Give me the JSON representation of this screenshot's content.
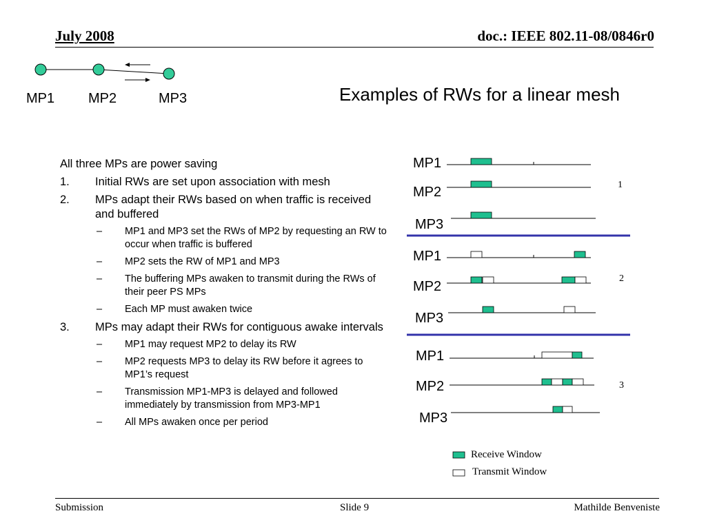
{
  "header": {
    "date": "July 2008",
    "doc": "doc.: IEEE 802.11-08/0846r0"
  },
  "footer": {
    "left": "Submission",
    "center": "Slide 9",
    "right": "Mathilde Benveniste"
  },
  "title": "Examples of RWs for a linear mesh",
  "topology": {
    "nodes": [
      "MP1",
      "MP2",
      "MP3"
    ],
    "node_color": "#33cc99"
  },
  "body": {
    "intro": "All three MPs are power saving",
    "items": [
      {
        "num": "1.",
        "text": "Initial RWs are set upon association with mesh",
        "subs": []
      },
      {
        "num": "2.",
        "text": "MPs adapt their RWs based on when traffic is received and buffered",
        "subs": [
          "MP1 and MP3 set the RWs of MP2 by requesting an RW to occur when traffic is buffered",
          "MP2 sets the RW of MP1 and MP3",
          "The buffering MPs awaken to transmit during the RWs of their peer PS MPs",
          "Each MP must awaken twice"
        ]
      },
      {
        "num": "3.",
        "text": "MPs may adapt their RWs for contiguous awake intervals",
        "subs": [
          "MP1 may request MP2 to delay its RW",
          "MP2 requests MP3 to delay its RW before it agrees to MP1’s request",
          "Transmission MP1-MP3 is delayed and followed immediately by transmission from MP3-MP1",
          "All MPs awaken once per period"
        ]
      }
    ]
  },
  "timeline": {
    "receive_color": "#1fbf8f",
    "separator_color": "#3333aa",
    "groups": [
      {
        "label": "1",
        "rows": [
          {
            "name": "MP1",
            "windows": [
              {
                "type": "receive"
              }
            ]
          },
          {
            "name": "MP2",
            "windows": [
              {
                "type": "receive"
              }
            ]
          },
          {
            "name": "MP3",
            "windows": [
              {
                "type": "receive"
              }
            ]
          }
        ]
      },
      {
        "label": "2",
        "rows": [
          {
            "name": "MP1",
            "windows": [
              {
                "type": "transmit"
              },
              {
                "type": "receive"
              }
            ]
          },
          {
            "name": "MP2",
            "windows": [
              {
                "type": "receive"
              },
              {
                "type": "transmit"
              },
              {
                "type": "receive"
              },
              {
                "type": "transmit"
              }
            ]
          },
          {
            "name": "MP3",
            "windows": [
              {
                "type": "receive"
              },
              {
                "type": "transmit"
              }
            ]
          }
        ]
      },
      {
        "label": "3",
        "rows": [
          {
            "name": "MP1",
            "windows": [
              {
                "type": "transmit"
              },
              {
                "type": "receive"
              }
            ]
          },
          {
            "name": "MP2",
            "windows": [
              {
                "type": "receive"
              },
              {
                "type": "transmit"
              },
              {
                "type": "receive"
              },
              {
                "type": "transmit"
              }
            ]
          },
          {
            "name": "MP3",
            "windows": [
              {
                "type": "receive"
              },
              {
                "type": "transmit"
              }
            ]
          }
        ]
      }
    ],
    "legend": {
      "receive": "Receive Window",
      "transmit": "Transmit Window"
    }
  }
}
